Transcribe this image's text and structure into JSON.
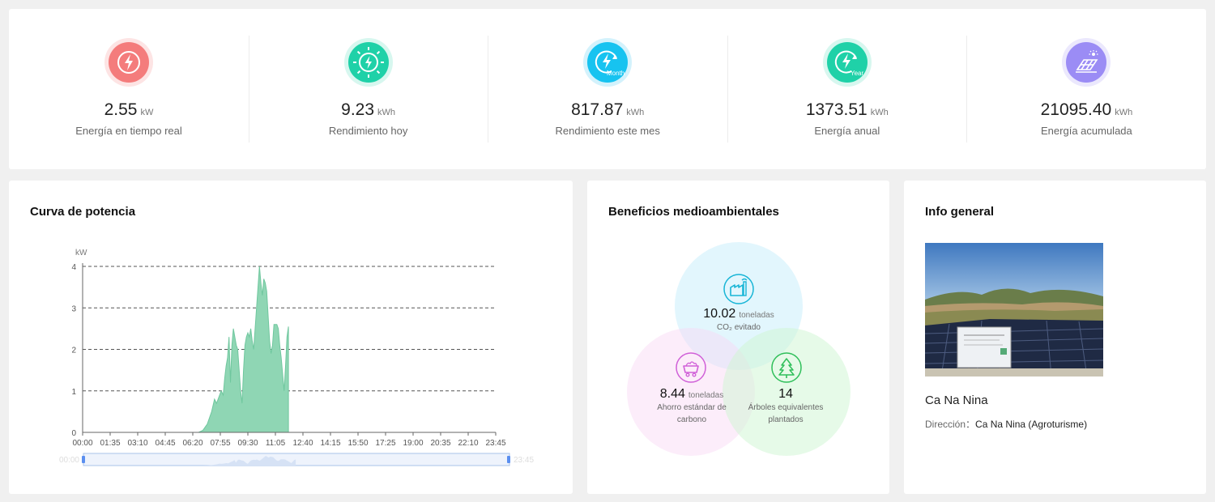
{
  "kpis": [
    {
      "value": "2.55",
      "unit": "kW",
      "label": "Energía en tiempo real",
      "icon": "lightning-icon",
      "color": "#f47c7c",
      "ring": "#fde4e4"
    },
    {
      "value": "9.23",
      "unit": "kWh",
      "label": "Rendimiento hoy",
      "icon": "sun-lightning-icon",
      "color": "#1fd1a8",
      "ring": "#d7f7ef"
    },
    {
      "value": "817.87",
      "unit": "kWh",
      "label": "Rendimiento este mes",
      "icon": "month-lightning-icon",
      "icon_text": "Month",
      "color": "#17c3f0",
      "ring": "#d3f2fc"
    },
    {
      "value": "1373.51",
      "unit": "kWh",
      "label": "Energía anual",
      "icon": "year-lightning-icon",
      "icon_text": "Year",
      "color": "#1fd1a8",
      "ring": "#d7f7ef"
    },
    {
      "value": "21095.40",
      "unit": "kWh",
      "label": "Energía acumulada",
      "icon": "solar-panel-icon",
      "color": "#9b8cf5",
      "ring": "#ebe8fd"
    }
  ],
  "power": {
    "title": "Curva de potencia",
    "chart_data": {
      "type": "area",
      "ylabel": "kW",
      "ylim": [
        0,
        4
      ],
      "yticks": [
        "0",
        "1",
        "2",
        "3",
        "4"
      ],
      "xticks": [
        "00:00",
        "01:35",
        "03:10",
        "04:45",
        "06:20",
        "07:55",
        "09:30",
        "11:05",
        "12:40",
        "14:15",
        "15:50",
        "17:25",
        "19:00",
        "20:35",
        "22:10",
        "23:45"
      ],
      "x_range_minutes": [
        0,
        1425
      ],
      "series": [
        {
          "color": "#8fd6b4",
          "points": [
            [
              400,
              0
            ],
            [
              415,
              0.05
            ],
            [
              430,
              0.2
            ],
            [
              445,
              0.5
            ],
            [
              455,
              0.8
            ],
            [
              462,
              0.7
            ],
            [
              470,
              0.85
            ],
            [
              478,
              1.0
            ],
            [
              485,
              0.9
            ],
            [
              490,
              1.3
            ],
            [
              495,
              1.6
            ],
            [
              500,
              1.8
            ],
            [
              505,
              2.3
            ],
            [
              510,
              1.2
            ],
            [
              515,
              2.1
            ],
            [
              520,
              2.5
            ],
            [
              525,
              2.3
            ],
            [
              530,
              2.1
            ],
            [
              535,
              2.0
            ],
            [
              540,
              1.5
            ],
            [
              545,
              1.0
            ],
            [
              550,
              0.7
            ],
            [
              555,
              1.5
            ],
            [
              560,
              2.1
            ],
            [
              565,
              2.3
            ],
            [
              570,
              2.4
            ],
            [
              575,
              2.3
            ],
            [
              580,
              2.5
            ],
            [
              585,
              2.2
            ],
            [
              590,
              2.0
            ],
            [
              595,
              2.5
            ],
            [
              600,
              3.0
            ],
            [
              605,
              3.5
            ],
            [
              610,
              4.0
            ],
            [
              615,
              3.6
            ],
            [
              620,
              3.3
            ],
            [
              625,
              3.7
            ],
            [
              630,
              3.6
            ],
            [
              635,
              3.4
            ],
            [
              640,
              2.8
            ],
            [
              645,
              2.2
            ],
            [
              650,
              1.9
            ],
            [
              655,
              2.1
            ],
            [
              660,
              2.6
            ],
            [
              670,
              2.6
            ],
            [
              675,
              2.5
            ],
            [
              680,
              2.1
            ],
            [
              685,
              1.8
            ],
            [
              690,
              1.4
            ],
            [
              695,
              1.0
            ],
            [
              700,
              1.6
            ],
            [
              705,
              2.3
            ],
            [
              710,
              2.55
            ],
            [
              710,
              0
            ]
          ]
        }
      ]
    }
  },
  "env": {
    "title": "Beneficios medioambientales",
    "co2": {
      "value": "10.02",
      "unit": "toneladas",
      "label": "CO₂ evitado",
      "icon": "factory-icon",
      "color": "#17b5d6"
    },
    "coal": {
      "value": "8.44",
      "unit": "toneladas",
      "label": "Ahorro estándar de carbono",
      "icon": "coal-cart-icon",
      "color": "#d060d8"
    },
    "trees": {
      "value": "14",
      "label": "Árboles equivalentes plantados",
      "icon": "tree-icon",
      "color": "#2fbf5a"
    }
  },
  "info": {
    "title": "Info general",
    "plant_name": "Ca Na Nina",
    "address_key": "Dirección：",
    "address_value": "Ca Na Nina (Agroturisme)"
  }
}
